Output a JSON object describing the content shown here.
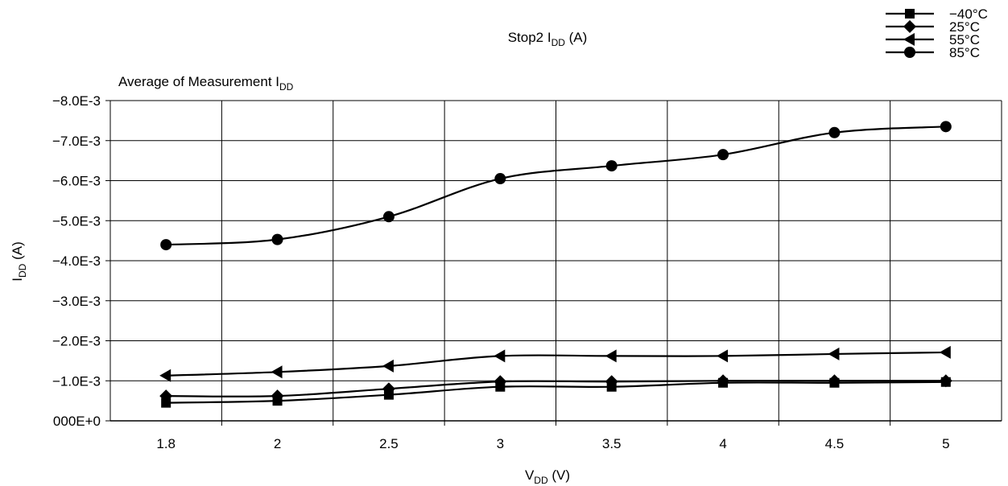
{
  "chart_data": {
    "type": "line",
    "title": "Stop2 I",
    "title_sub": "DD",
    "title_suffix": " (A)",
    "subtitle": "Average of Measurement I",
    "subtitle_sub": "DD",
    "xlabel": "V",
    "xlabel_sub": "DD",
    "xlabel_suffix": " (V)",
    "ylabel": "I",
    "ylabel_sub": "DD",
    "ylabel_suffix": " (A)",
    "categories": [
      "1.8",
      "2",
      "2.5",
      "3",
      "3.5",
      "4",
      "4.5",
      "5"
    ],
    "yticks": [
      {
        "value": 0,
        "label": "000E+0"
      },
      {
        "value": -0.001,
        "label": "−1.0E-3"
      },
      {
        "value": -0.002,
        "label": "−2.0E-3"
      },
      {
        "value": -0.003,
        "label": "−3.0E-3"
      },
      {
        "value": -0.004,
        "label": "−4.0E-3"
      },
      {
        "value": -0.005,
        "label": "−5.0E-3"
      },
      {
        "value": -0.006,
        "label": "−6.0E-3"
      },
      {
        "value": -0.007,
        "label": "−7.0E-3"
      },
      {
        "value": -0.008,
        "label": "−8.0E-3"
      }
    ],
    "ylim": [
      0,
      -0.008
    ],
    "y_inverted": true,
    "grid": true,
    "legend_position": "top-right",
    "series": [
      {
        "name": "−40°C",
        "marker": "square",
        "values": [
          -0.00045,
          -0.0005,
          -0.00065,
          -0.00085,
          -0.00085,
          -0.00095,
          -0.00095,
          -0.00097
        ]
      },
      {
        "name": "25°C",
        "marker": "diamond",
        "values": [
          -0.00062,
          -0.00062,
          -0.0008,
          -0.00098,
          -0.00098,
          -0.001,
          -0.001,
          -0.001
        ]
      },
      {
        "name": "55°C",
        "marker": "triangle-left",
        "values": [
          -0.00113,
          -0.00122,
          -0.00137,
          -0.00162,
          -0.00162,
          -0.00162,
          -0.00167,
          -0.00171
        ]
      },
      {
        "name": "85°C",
        "marker": "circle",
        "values": [
          -0.0044,
          -0.00453,
          -0.0051,
          -0.00605,
          -0.00637,
          -0.00665,
          -0.0072,
          -0.00735
        ]
      }
    ]
  }
}
